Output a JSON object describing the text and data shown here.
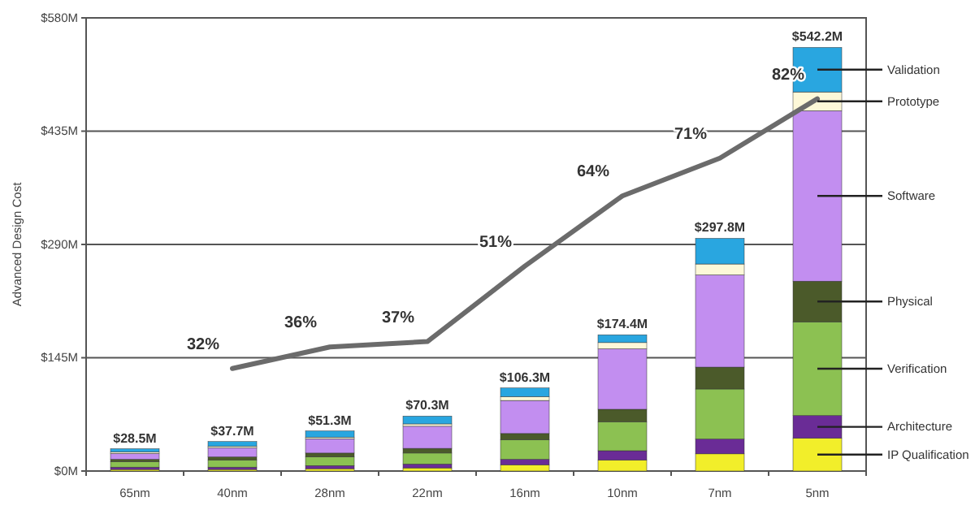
{
  "chart_data": {
    "type": "bar",
    "stacked": true,
    "ylabel": "Advanced Design Cost",
    "categories": [
      "65nm",
      "40nm",
      "28nm",
      "22nm",
      "16nm",
      "10nm",
      "7nm",
      "5nm"
    ],
    "ylim": [
      0,
      580
    ],
    "yticks": [
      {
        "value": 0,
        "label": "$0M"
      },
      {
        "value": 145,
        "label": "$145M"
      },
      {
        "value": 290,
        "label": "$290M"
      },
      {
        "value": 435,
        "label": "$435M"
      },
      {
        "value": 580,
        "label": "$580M"
      }
    ],
    "grid": "y",
    "legend": "right",
    "totals": [
      "$28.5M",
      "$37.7M",
      "$51.3M",
      "$70.3M",
      "$106.3M",
      "$174.4M",
      "$297.8M",
      "$542.2M"
    ],
    "y2lim": [
      13,
      97
    ],
    "series": [
      {
        "name": "IP Qualification",
        "color": "#f2ee2a",
        "values": [
          2,
          2,
          3,
          4,
          8,
          14,
          22,
          42
        ]
      },
      {
        "name": "Architecture",
        "color": "#6a2c96",
        "values": [
          3,
          3,
          4,
          5,
          7,
          12,
          19,
          29
        ]
      },
      {
        "name": "Verification",
        "color": "#8cc152",
        "values": [
          7,
          9,
          11,
          14,
          25,
          37,
          64,
          120
        ]
      },
      {
        "name": "Physical",
        "color": "#4b5a2a",
        "values": [
          3,
          4,
          5,
          6,
          8,
          16,
          28,
          52
        ]
      },
      {
        "name": "Software",
        "color": "#c28ef0",
        "values": [
          7.5,
          11.7,
          18.3,
          28.3,
          42.3,
          77.4,
          118,
          218.2
        ]
      },
      {
        "name": "Prototype",
        "color": "#fdf8d8",
        "values": [
          2,
          2,
          2,
          3,
          5,
          8,
          14,
          24
        ]
      },
      {
        "name": "Validation",
        "color": "#29a6e0",
        "values": [
          4,
          6,
          8,
          10,
          11,
          10,
          32.8,
          57
        ]
      },
      {
        "type": "line",
        "axis": "y2",
        "color": "#6b6b6b",
        "values": [
          null,
          32,
          36,
          37,
          51,
          64,
          71,
          82
        ],
        "value_labels": [
          null,
          "32%",
          "36%",
          "37%",
          "51%",
          "64%",
          "71%",
          "82%"
        ]
      }
    ]
  }
}
